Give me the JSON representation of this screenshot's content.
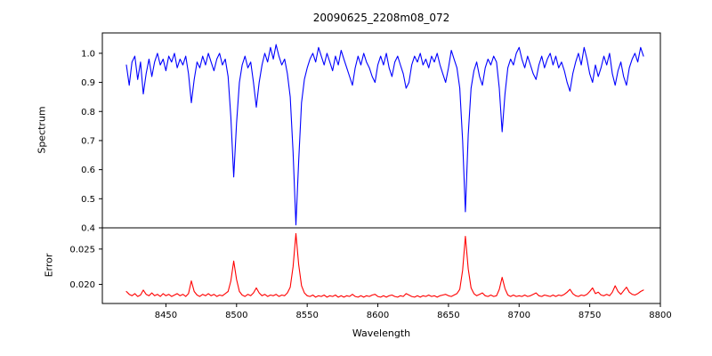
{
  "chart_data": {
    "type": "line",
    "title": "20090625_2208m08_072",
    "xlabel": "Wavelength",
    "grid": false,
    "legend": "none",
    "x_start": 8422,
    "x_step": 2,
    "xlim": [
      8405,
      8800
    ],
    "x_ticks": [
      8450,
      8500,
      8550,
      8600,
      8650,
      8700,
      8750,
      8800
    ],
    "x_tick_labels": [
      "8450",
      "8500",
      "8550",
      "8600",
      "8650",
      "8700",
      "8750",
      "8800"
    ],
    "panels": [
      {
        "name": "spectrum",
        "ylabel": "Spectrum",
        "color": "#0000ff",
        "ylim": [
          0.4,
          1.07
        ],
        "yticks": [
          0.4,
          0.5,
          0.6,
          0.7,
          0.8,
          0.9,
          1.0
        ],
        "ytick_labels": [
          "0.4",
          "0.5",
          "0.6",
          "0.7",
          "0.8",
          "0.9",
          "1.0"
        ],
        "absorption_lines": [
          {
            "center": 8498,
            "min_flux": 0.575
          },
          {
            "center": 8542,
            "min_flux": 0.41
          },
          {
            "center": 8662,
            "min_flux": 0.455
          },
          {
            "center": 8688,
            "min_flux": 0.73
          },
          {
            "center": 8468,
            "min_flux": 0.83
          },
          {
            "center": 8514,
            "min_flux": 0.815
          }
        ],
        "values": [
          0.96,
          0.89,
          0.97,
          0.99,
          0.91,
          0.97,
          0.86,
          0.93,
          0.98,
          0.92,
          0.97,
          1.0,
          0.96,
          0.98,
          0.94,
          0.99,
          0.97,
          1.0,
          0.95,
          0.98,
          0.96,
          0.99,
          0.93,
          0.83,
          0.91,
          0.97,
          0.95,
          0.99,
          0.96,
          1.0,
          0.97,
          0.94,
          0.98,
          1.0,
          0.96,
          0.98,
          0.92,
          0.78,
          0.575,
          0.76,
          0.9,
          0.96,
          0.99,
          0.95,
          0.97,
          0.9,
          0.815,
          0.9,
          0.96,
          1.0,
          0.97,
          1.02,
          0.98,
          1.03,
          0.99,
          0.96,
          0.98,
          0.93,
          0.85,
          0.66,
          0.41,
          0.63,
          0.83,
          0.91,
          0.95,
          0.98,
          1.0,
          0.97,
          1.02,
          0.99,
          0.96,
          1.0,
          0.97,
          0.94,
          0.99,
          0.96,
          1.01,
          0.98,
          0.95,
          0.92,
          0.89,
          0.95,
          0.99,
          0.96,
          1.0,
          0.97,
          0.95,
          0.92,
          0.9,
          0.96,
          0.99,
          0.96,
          1.0,
          0.95,
          0.92,
          0.97,
          0.99,
          0.96,
          0.93,
          0.88,
          0.9,
          0.96,
          0.99,
          0.97,
          1.0,
          0.96,
          0.98,
          0.95,
          0.99,
          0.97,
          1.0,
          0.96,
          0.93,
          0.9,
          0.95,
          1.01,
          0.98,
          0.95,
          0.88,
          0.7,
          0.455,
          0.72,
          0.88,
          0.94,
          0.97,
          0.92,
          0.89,
          0.95,
          0.98,
          0.96,
          0.99,
          0.97,
          0.88,
          0.73,
          0.86,
          0.95,
          0.98,
          0.96,
          1.0,
          1.02,
          0.98,
          0.95,
          0.99,
          0.96,
          0.93,
          0.91,
          0.96,
          0.99,
          0.95,
          0.98,
          1.0,
          0.96,
          0.99,
          0.95,
          0.97,
          0.94,
          0.9,
          0.87,
          0.93,
          0.97,
          1.0,
          0.96,
          1.02,
          0.98,
          0.93,
          0.9,
          0.96,
          0.92,
          0.95,
          0.99,
          0.96,
          1.0,
          0.93,
          0.89,
          0.94,
          0.97,
          0.92,
          0.89,
          0.95,
          0.98,
          1.0,
          0.97,
          1.02,
          0.99
        ]
      },
      {
        "name": "error",
        "ylabel": "Error",
        "color": "#ff0000",
        "ylim": [
          0.0173,
          0.028
        ],
        "yticks": [
          0.02,
          0.025
        ],
        "ytick_labels": [
          "0.020",
          "0.025"
        ],
        "values": [
          0.019,
          0.0186,
          0.0184,
          0.0187,
          0.0183,
          0.0185,
          0.0192,
          0.0186,
          0.0184,
          0.0188,
          0.0184,
          0.0186,
          0.0183,
          0.0187,
          0.0184,
          0.0186,
          0.0183,
          0.0185,
          0.0187,
          0.0184,
          0.0186,
          0.0183,
          0.0187,
          0.0205,
          0.019,
          0.0185,
          0.0183,
          0.0186,
          0.0184,
          0.0187,
          0.0184,
          0.0186,
          0.0183,
          0.0185,
          0.0184,
          0.0187,
          0.019,
          0.0205,
          0.0233,
          0.0207,
          0.019,
          0.0185,
          0.0183,
          0.0186,
          0.0184,
          0.0188,
          0.0195,
          0.0188,
          0.0184,
          0.0186,
          0.0183,
          0.0185,
          0.0184,
          0.0186,
          0.0183,
          0.0185,
          0.0184,
          0.0188,
          0.0196,
          0.0225,
          0.0272,
          0.0228,
          0.0198,
          0.0188,
          0.0184,
          0.0183,
          0.0185,
          0.0182,
          0.0184,
          0.0183,
          0.0185,
          0.0182,
          0.0184,
          0.0183,
          0.0185,
          0.0182,
          0.0184,
          0.0182,
          0.0184,
          0.0183,
          0.0186,
          0.0183,
          0.0182,
          0.0184,
          0.0182,
          0.0184,
          0.0183,
          0.0185,
          0.0186,
          0.0183,
          0.0182,
          0.0184,
          0.0182,
          0.0184,
          0.0185,
          0.0183,
          0.0182,
          0.0184,
          0.0183,
          0.0187,
          0.0185,
          0.0183,
          0.0182,
          0.0184,
          0.0182,
          0.0184,
          0.0183,
          0.0185,
          0.0183,
          0.0184,
          0.0182,
          0.0184,
          0.0185,
          0.0186,
          0.0184,
          0.0183,
          0.0185,
          0.0187,
          0.0193,
          0.022,
          0.0268,
          0.0222,
          0.0195,
          0.0187,
          0.0184,
          0.0186,
          0.0188,
          0.0184,
          0.0183,
          0.0185,
          0.0183,
          0.0184,
          0.0193,
          0.021,
          0.0194,
          0.0185,
          0.0183,
          0.0185,
          0.0183,
          0.0184,
          0.0183,
          0.0185,
          0.0183,
          0.0184,
          0.0186,
          0.0188,
          0.0184,
          0.0183,
          0.0185,
          0.0184,
          0.0183,
          0.0185,
          0.0183,
          0.0185,
          0.0184,
          0.0186,
          0.0189,
          0.0193,
          0.0187,
          0.0184,
          0.0183,
          0.0185,
          0.0184,
          0.0186,
          0.019,
          0.0195,
          0.0187,
          0.0189,
          0.0185,
          0.0184,
          0.0186,
          0.0184,
          0.0189,
          0.0198,
          0.019,
          0.0186,
          0.0191,
          0.0196,
          0.0189,
          0.0186,
          0.0185,
          0.0187,
          0.019,
          0.0192
        ]
      }
    ]
  }
}
